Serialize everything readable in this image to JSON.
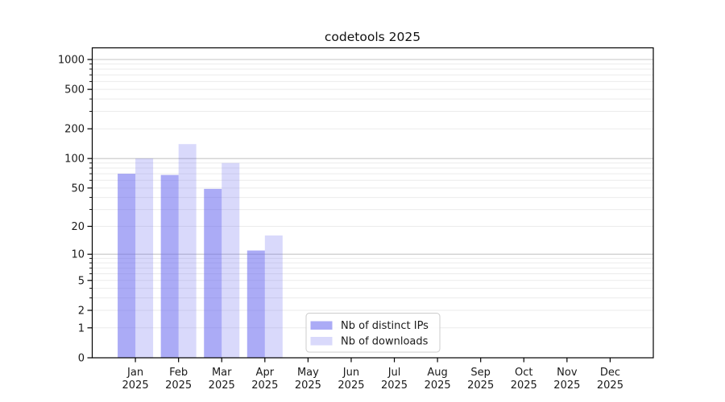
{
  "chart_data": {
    "type": "bar",
    "title": "codetools 2025",
    "categories": [
      "Jan",
      "Feb",
      "Mar",
      "Apr",
      "May",
      "Jun",
      "Jul",
      "Aug",
      "Sep",
      "Oct",
      "Nov",
      "Dec"
    ],
    "category_year": "2025",
    "series": [
      {
        "name": "Nb of distinct IPs",
        "color": "rgba(102,102,238,0.55)",
        "values": [
          70,
          68,
          49,
          11,
          null,
          null,
          null,
          null,
          null,
          null,
          null,
          null
        ]
      },
      {
        "name": "Nb of downloads",
        "color": "rgba(102,102,238,0.25)",
        "values": [
          100,
          140,
          90,
          16,
          null,
          null,
          null,
          null,
          null,
          null,
          null,
          null
        ]
      }
    ],
    "yscale": "log1p",
    "ylim": [
      0,
      1310
    ],
    "yticks": [
      {
        "value": 0,
        "label": "0"
      },
      {
        "value": 1,
        "label": "1"
      },
      {
        "value": 2,
        "label": "2"
      },
      {
        "value": 5,
        "label": "5"
      },
      {
        "value": 10,
        "label": "10"
      },
      {
        "value": 20,
        "label": "20"
      },
      {
        "value": 50,
        "label": "50"
      },
      {
        "value": 100,
        "label": "100"
      },
      {
        "value": 200,
        "label": "200"
      },
      {
        "value": 500,
        "label": "500"
      },
      {
        "value": 1000,
        "label": "1000"
      }
    ],
    "major_grid_values": [
      10,
      100,
      1000
    ],
    "grid": true,
    "legend_position": "lower center",
    "colors": {
      "major_grid": "#c6c6c6",
      "minor_grid": "#ebebeb",
      "spine": "#000000",
      "text": "#1a1a1a",
      "legend_border": "#cccccc",
      "legend_bg": "rgba(255,255,255,0.85)"
    }
  }
}
